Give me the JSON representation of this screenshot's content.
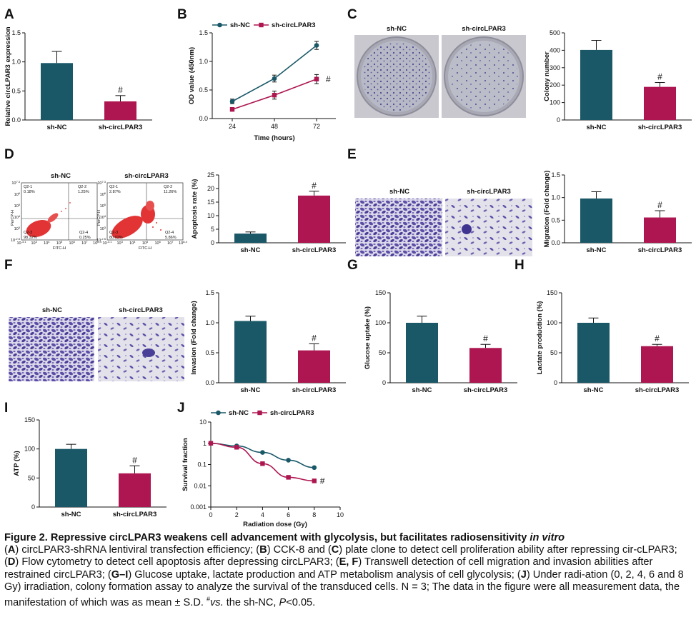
{
  "colors": {
    "nc": "#1a5868",
    "circ": "#ad1650",
    "axis": "#111111",
    "stain": "#5a50a8",
    "flow": "#e03030"
  },
  "groups": [
    "sh-NC",
    "sh-circLPAR3"
  ],
  "panels": {
    "A": {
      "label": "A",
      "ylabel": "Relative circLPAR3 expression",
      "ticks": [
        "0.0",
        "0.5",
        "1.0",
        "1.5"
      ],
      "sig": "#"
    },
    "B": {
      "label": "B",
      "ylabel": "OD value (450nm)",
      "xlabel": "Time (hours)",
      "xticks": [
        "24",
        "48",
        "72"
      ],
      "yticks": [
        "0.0",
        "0.5",
        "1.0",
        "1.5"
      ],
      "sig": "#"
    },
    "C": {
      "label": "C",
      "ylabel": "Colony number",
      "ticks": [
        "0",
        "100",
        "200",
        "300",
        "400",
        "500"
      ],
      "sig": "#",
      "image_labels": [
        "sh-NC",
        "sh-circLPAR3"
      ]
    },
    "D": {
      "label": "D",
      "ylabel": "Apoptosis rate (%)",
      "ticks": [
        "0",
        "5",
        "10",
        "15",
        "20",
        "25"
      ],
      "sig": "#",
      "image_labels": [
        "sh-NC",
        "sh-circLPAR3"
      ],
      "flow": {
        "nc": {
          "q1": "Q2-1",
          "q1v": "0.18%",
          "q2": "Q2-2",
          "q2v": "1.25%",
          "q3": "Q2-3",
          "q3v": "98.32%",
          "q4": "Q2-4",
          "q4v": "0.25%"
        },
        "circ": {
          "q1": "Q2-1",
          "q1v": "2.87%",
          "q2": "Q2-2",
          "q2v": "11.26%",
          "q3": "Q2-3",
          "q3v": "80.02%",
          "q4": "Q2-4",
          "q4v": "5.86%"
        },
        "xaxis": "FITC-H",
        "yaxis": "PerCP-H",
        "xticks": [
          "10^-3.1",
          "10^3",
          "10^4",
          "10^5",
          "10^6",
          "10^7",
          "10^8.4"
        ],
        "yticks": [
          "10^-2.5",
          "10^3",
          "10^4",
          "10^5",
          "10^6",
          "10^7.3"
        ]
      }
    },
    "E": {
      "label": "E",
      "ylabel": "Migration (Fold change)",
      "ticks": [
        "0.0",
        "0.5",
        "1.0",
        "1.5"
      ],
      "sig": "#",
      "image_labels": [
        "sh-NC",
        "sh-circLPAR3"
      ]
    },
    "F": {
      "label": "F",
      "ylabel": "Invasion (Fold change)",
      "ticks": [
        "0.0",
        "0.5",
        "1.0",
        "1.5"
      ],
      "sig": "#",
      "image_labels": [
        "sh-NC",
        "sh-circLPAR3"
      ]
    },
    "G": {
      "label": "G",
      "ylabel": "Glucose uptake (%)",
      "ticks": [
        "0",
        "50",
        "100",
        "150"
      ],
      "sig": "#"
    },
    "H": {
      "label": "H",
      "ylabel": "Lactate production (%)",
      "ticks": [
        "0",
        "50",
        "100",
        "150"
      ],
      "sig": "#"
    },
    "I": {
      "label": "I",
      "ylabel": "ATP (%)",
      "ticks": [
        "0",
        "50",
        "100",
        "150"
      ],
      "sig": "#"
    },
    "J": {
      "label": "J",
      "ylabel": "Survival fraction",
      "xlabel": "Radiation dose (Gy)",
      "xticks": [
        "0",
        "2",
        "4",
        "6",
        "8",
        "10"
      ],
      "yticks": [
        "0.001",
        "0.01",
        "0.1",
        "1",
        "10"
      ],
      "sig": "#"
    }
  },
  "chart_data": [
    {
      "panel": "A",
      "type": "bar",
      "categories": [
        "sh-NC",
        "sh-circLPAR3"
      ],
      "values": [
        0.98,
        0.32
      ],
      "errors": [
        0.2,
        0.1
      ],
      "ylabel": "Relative circLPAR3 expression",
      "ylim": [
        0,
        1.5
      ]
    },
    {
      "panel": "B",
      "type": "line",
      "x": [
        24,
        48,
        72
      ],
      "xlabel": "Time (hours)",
      "ylabel": "OD value (450nm)",
      "ylim": [
        0,
        1.5
      ],
      "series": [
        {
          "name": "sh-NC",
          "values": [
            0.3,
            0.7,
            1.28
          ],
          "errors": [
            0.04,
            0.06,
            0.07
          ]
        },
        {
          "name": "sh-circLPAR3",
          "values": [
            0.16,
            0.41,
            0.69
          ],
          "errors": [
            0.02,
            0.07,
            0.08
          ]
        }
      ]
    },
    {
      "panel": "C",
      "type": "bar",
      "categories": [
        "sh-NC",
        "sh-circLPAR3"
      ],
      "values": [
        402,
        190
      ],
      "errors": [
        55,
        25
      ],
      "ylabel": "Colony number",
      "ylim": [
        0,
        500
      ]
    },
    {
      "panel": "D",
      "type": "bar",
      "categories": [
        "sh-NC",
        "sh-circLPAR3"
      ],
      "values": [
        3.4,
        17.4
      ],
      "errors": [
        0.6,
        1.6
      ],
      "ylabel": "Apoptosis rate (%)",
      "ylim": [
        0,
        25
      ]
    },
    {
      "panel": "E",
      "type": "bar",
      "categories": [
        "sh-NC",
        "sh-circLPAR3"
      ],
      "values": [
        0.98,
        0.56
      ],
      "errors": [
        0.15,
        0.15
      ],
      "ylabel": "Migration (Fold change)",
      "ylim": [
        0,
        1.5
      ]
    },
    {
      "panel": "F",
      "type": "bar",
      "categories": [
        "sh-NC",
        "sh-circLPAR3"
      ],
      "values": [
        1.03,
        0.54
      ],
      "errors": [
        0.08,
        0.11
      ],
      "ylabel": "Invasion (Fold change)",
      "ylim": [
        0,
        1.5
      ]
    },
    {
      "panel": "G",
      "type": "bar",
      "categories": [
        "sh-NC",
        "sh-circLPAR3"
      ],
      "values": [
        100,
        58
      ],
      "errors": [
        11,
        6
      ],
      "ylabel": "Glucose uptake (%)",
      "ylim": [
        0,
        150
      ]
    },
    {
      "panel": "H",
      "type": "bar",
      "categories": [
        "sh-NC",
        "sh-circLPAR3"
      ],
      "values": [
        100,
        61
      ],
      "errors": [
        8,
        3
      ],
      "ylabel": "Lactate production (%)",
      "ylim": [
        0,
        150
      ]
    },
    {
      "panel": "I",
      "type": "bar",
      "categories": [
        "sh-NC",
        "sh-circLPAR3"
      ],
      "values": [
        100,
        58
      ],
      "errors": [
        8,
        13
      ],
      "ylabel": "ATP (%)",
      "ylim": [
        0,
        150
      ]
    },
    {
      "panel": "J",
      "type": "line",
      "scale": "log",
      "x": [
        0,
        2,
        4,
        6,
        8
      ],
      "xlabel": "Radiation dose (Gy)",
      "ylabel": "Survival fraction",
      "xlim": [
        0,
        10
      ],
      "ylim": [
        0.001,
        10
      ],
      "series": [
        {
          "name": "sh-NC",
          "values": [
            1,
            0.75,
            0.37,
            0.16,
            0.072
          ]
        },
        {
          "name": "sh-circLPAR3",
          "values": [
            1,
            0.65,
            0.11,
            0.025,
            0.017
          ]
        }
      ]
    }
  ],
  "caption": {
    "title": "Figure 2. Repressive circLPAR3 weakens cell advancement with glycolysis, but facilitates radiosensitivity ",
    "title_italic": "in vitro",
    "seg": [
      "(",
      "A",
      ") circLPAR3-shRNA lentiviral transfection efficiency; (",
      "B",
      ") CCK-8 and (",
      "C",
      ") plate clone to detect cell proliferation ability after repressing cir-cLPAR3; (",
      "D",
      ") Flow cytometry to detect cell apoptosis after depressing circLPAR3; (",
      "E, F",
      ") Transwell detection of cell migration and invasion abilities after restrained circLPAR3; (",
      "G–I",
      ") Glucose uptake, lactate production and ATP metabolism analysis of cell glycolysis; (",
      "J",
      ") Under radi-ation (0, 2, 4, 6 and 8 Gy) irradiation, colony formation assay to analyze the survival of the transduced cells. N = 3; The data in the figure were all measurement data, the manifestation of which was as mean ± S.D. "
    ],
    "sup": "#",
    "vs": "vs.",
    "tail1": " the sh-NC, ",
    "p": "P",
    "tail2": "<0.05."
  }
}
